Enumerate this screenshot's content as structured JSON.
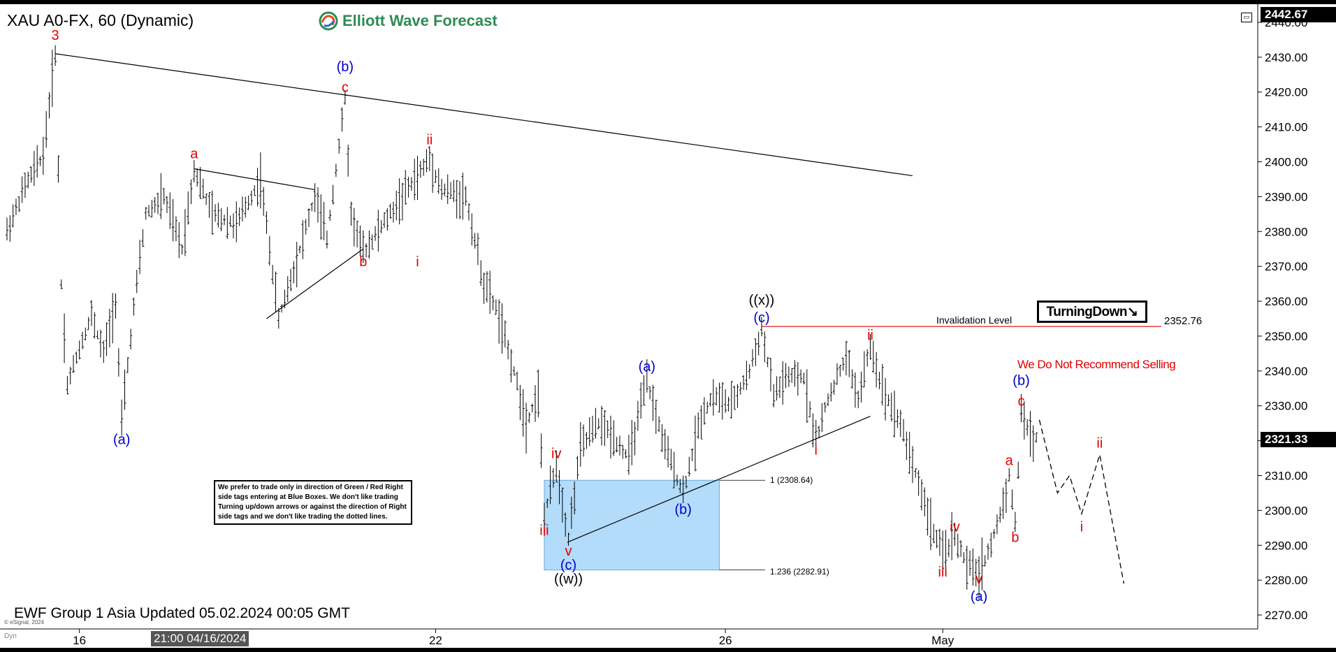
{
  "header": {
    "symbol": "XAU A0-FX, 60 (Dynamic)",
    "logo_text": "Elliott Wave Forecast"
  },
  "footer": {
    "updated": "EWF Group 1 Asia Updated 05.02.2024 00:05 GMT",
    "copyright": "© eSignal, 2024",
    "dyn": "Dyn"
  },
  "disclaimer": "We prefer to trade only in direction of Green / Red Right side tags entering at Blue Boxes. We don't like trading Turning up/down arrows or against the direction of Right side tags and we don't like trading the dotted lines.",
  "turning_label": "TurningDown↘",
  "no_sell": "We Do Not Recommend Selling",
  "invalidation": {
    "label": "Invalidation Level",
    "value": "2352.76"
  },
  "fib": {
    "level1": "1 (2308.64)",
    "level2": "1.236 (2282.91)"
  },
  "price_boxes": {
    "last": "2321.33",
    "top": "2442.67"
  },
  "x_cursor": "21:00 04/16/2024",
  "colors": {
    "up_down_bars": "#000000",
    "blue_box": "#b3dcfb",
    "wave_red": "#e00000",
    "wave_blue": "#0000cc",
    "invalidation_line": "#e00000"
  },
  "chart_data": {
    "type": "ohlc",
    "title": "XAU A0-FX, 60 (Dynamic)",
    "ylim": [
      2266,
      2444
    ],
    "ytick_labels": [
      "2270.00",
      "2280.00",
      "2290.00",
      "2300.00",
      "2310.00",
      "2320.00",
      "2330.00",
      "2340.00",
      "2350.00",
      "2360.00",
      "2370.00",
      "2380.00",
      "2390.00",
      "2400.00",
      "2410.00",
      "2420.00",
      "2430.00",
      "2440.00"
    ],
    "xtick_labels": [
      "16",
      "22",
      "26",
      "May"
    ],
    "price_path": [
      {
        "x": "04/15 00:00",
        "y": 2380
      },
      {
        "x": "04/15 06:00",
        "y": 2393
      },
      {
        "x": "04/15 12:00",
        "y": 2402
      },
      {
        "x": "04/15 16:00",
        "y": 2431
      },
      {
        "x": "04/15 18:00",
        "y": 2365
      },
      {
        "x": "04/15 20:00",
        "y": 2336
      },
      {
        "x": "04/15 23:00",
        "y": 2344
      },
      {
        "x": "04/16 04:00",
        "y": 2356
      },
      {
        "x": "04/16 08:00",
        "y": 2345
      },
      {
        "x": "04/16 12:00",
        "y": 2360
      },
      {
        "x": "04/16 14:00",
        "y": 2325
      },
      {
        "x": "04/16 18:00",
        "y": 2358
      },
      {
        "x": "04/16 22:00",
        "y": 2385
      },
      {
        "x": "04/17 04:00",
        "y": 2390
      },
      {
        "x": "04/17 10:00",
        "y": 2375
      },
      {
        "x": "04/17 14:00",
        "y": 2398
      },
      {
        "x": "04/17 20:00",
        "y": 2385
      },
      {
        "x": "04/18 04:00",
        "y": 2382
      },
      {
        "x": "04/18 12:00",
        "y": 2395
      },
      {
        "x": "04/18 18:00",
        "y": 2355
      },
      {
        "x": "04/19 00:00",
        "y": 2372
      },
      {
        "x": "04/19 06:00",
        "y": 2390
      },
      {
        "x": "04/19 10:00",
        "y": 2378
      },
      {
        "x": "04/19 16:00",
        "y": 2418
      },
      {
        "x": "04/19 18:00",
        "y": 2385
      },
      {
        "x": "04/19 22:00",
        "y": 2374
      },
      {
        "x": "04/21 22:00",
        "y": 2401
      },
      {
        "x": "04/22 02:00",
        "y": 2392
      },
      {
        "x": "04/22 10:00",
        "y": 2390
      },
      {
        "x": "04/22 16:00",
        "y": 2365
      },
      {
        "x": "04/22 20:00",
        "y": 2358
      },
      {
        "x": "04/23 02:00",
        "y": 2340
      },
      {
        "x": "04/23 06:00",
        "y": 2325
      },
      {
        "x": "04/23 10:00",
        "y": 2334
      },
      {
        "x": "04/23 12:00",
        "y": 2298
      },
      {
        "x": "04/23 16:00",
        "y": 2313
      },
      {
        "x": "04/23 20:00",
        "y": 2292
      },
      {
        "x": "04/24 00:00",
        "y": 2318
      },
      {
        "x": "04/24 06:00",
        "y": 2325
      },
      {
        "x": "04/24 10:00",
        "y": 2322
      },
      {
        "x": "04/24 16:00",
        "y": 2315
      },
      {
        "x": "04/24 22:00",
        "y": 2337
      },
      {
        "x": "04/25 04:00",
        "y": 2318
      },
      {
        "x": "04/25 10:00",
        "y": 2305
      },
      {
        "x": "04/25 16:00",
        "y": 2327
      },
      {
        "x": "04/25 20:00",
        "y": 2333
      },
      {
        "x": "04/26 02:00",
        "y": 2330
      },
      {
        "x": "04/26 08:00",
        "y": 2340
      },
      {
        "x": "04/26 12:00",
        "y": 2352
      },
      {
        "x": "04/26 16:00",
        "y": 2333
      },
      {
        "x": "04/26 20:00",
        "y": 2338
      },
      {
        "x": "04/29 02:00",
        "y": 2338
      },
      {
        "x": "04/29 06:00",
        "y": 2320
      },
      {
        "x": "04/29 10:00",
        "y": 2332
      },
      {
        "x": "04/29 16:00",
        "y": 2344
      },
      {
        "x": "04/29 20:00",
        "y": 2332
      },
      {
        "x": "04/30 00:00",
        "y": 2347
      },
      {
        "x": "04/30 04:00",
        "y": 2335
      },
      {
        "x": "04/30 10:00",
        "y": 2325
      },
      {
        "x": "04/30 16:00",
        "y": 2308
      },
      {
        "x": "04/30 20:00",
        "y": 2296
      },
      {
        "x": "05/01 00:00",
        "y": 2287
      },
      {
        "x": "05/01 04:00",
        "y": 2293
      },
      {
        "x": "05/01 08:00",
        "y": 2284
      },
      {
        "x": "05/01 12:00",
        "y": 2282
      },
      {
        "x": "05/01 16:00",
        "y": 2290
      },
      {
        "x": "05/01 20:00",
        "y": 2302
      },
      {
        "x": "05/01 22:00",
        "y": 2310
      },
      {
        "x": "05/02 00:00",
        "y": 2296
      },
      {
        "x": "05/02 02:00",
        "y": 2328
      },
      {
        "x": "05/02 06:00",
        "y": 2320
      },
      {
        "x": "05/02 08:00",
        "y": 2322
      }
    ],
    "projection": [
      {
        "x": "05/02 08:00",
        "y": 2326
      },
      {
        "x": "05/02 14:00",
        "y": 2305
      },
      {
        "x": "05/02 18:00",
        "y": 2310
      },
      {
        "x": "05/02 22:00",
        "y": 2299
      },
      {
        "x": "05/03 04:00",
        "y": 2316
      },
      {
        "x": "05/03 12:00",
        "y": 2279
      }
    ],
    "trend_lines": [
      {
        "from": {
          "x": "04/15 16:00",
          "y": 2431
        },
        "to": {
          "x": "04/30 14:00",
          "y": 2396
        }
      },
      {
        "from": {
          "x": "04/17 14:00",
          "y": 2398
        },
        "to": {
          "x": "04/19 06:00",
          "y": 2392
        }
      },
      {
        "from": {
          "x": "04/18 14:00",
          "y": 2355
        },
        "to": {
          "x": "04/19 22:00",
          "y": 2375
        }
      },
      {
        "from": {
          "x": "04/23 20:00",
          "y": 2291
        },
        "to": {
          "x": "04/30 00:00",
          "y": 2327
        }
      }
    ],
    "blue_box": {
      "x_from": "04/23 12:00",
      "x_to": "04/25 22:00",
      "y_from": 2282.91,
      "y_to": 2308.64
    },
    "invalidation_level": 2352.76,
    "labels": [
      {
        "text": "3",
        "x": "04/15 16:00",
        "y": 2435,
        "color": "red"
      },
      {
        "text": "(a)",
        "x": "04/16 14:00",
        "y": 2319,
        "color": "blue"
      },
      {
        "text": "a",
        "x": "04/17 14:00",
        "y": 2401,
        "color": "red"
      },
      {
        "text": "b",
        "x": "04/19 22:00",
        "y": 2370,
        "color": "red"
      },
      {
        "text": "(b)",
        "x": "04/19 16:00",
        "y": 2426,
        "color": "blue"
      },
      {
        "text": "c",
        "x": "04/19 16:00",
        "y": 2420,
        "color": "red"
      },
      {
        "text": "ii",
        "x": "04/21 22:00",
        "y": 2405,
        "color": "red"
      },
      {
        "text": "i",
        "x": "04/21 18:00",
        "y": 2370,
        "color": "red"
      },
      {
        "text": "iv",
        "x": "04/23 16:00",
        "y": 2315,
        "color": "red"
      },
      {
        "text": "iii",
        "x": "04/23 12:00",
        "y": 2293,
        "color": "red"
      },
      {
        "text": "v",
        "x": "04/23 20:00",
        "y": 2287,
        "color": "red"
      },
      {
        "text": "(c)",
        "x": "04/23 20:00",
        "y": 2283,
        "color": "blue"
      },
      {
        "text": "((w))",
        "x": "04/23 20:00",
        "y": 2279,
        "color": "black"
      },
      {
        "text": "(a)",
        "x": "04/24 22:00",
        "y": 2340,
        "color": "blue"
      },
      {
        "text": "(b)",
        "x": "04/25 10:00",
        "y": 2299,
        "color": "blue"
      },
      {
        "text": "((x))",
        "x": "04/26 12:00",
        "y": 2359,
        "color": "black"
      },
      {
        "text": "(c)",
        "x": "04/26 12:00",
        "y": 2354,
        "color": "blue"
      },
      {
        "text": "i",
        "x": "04/29 06:00",
        "y": 2316,
        "color": "red"
      },
      {
        "text": "ii",
        "x": "04/30 00:00",
        "y": 2349,
        "color": "red"
      },
      {
        "text": "iii",
        "x": "05/01 00:00",
        "y": 2281,
        "color": "red"
      },
      {
        "text": "iv",
        "x": "05/01 04:00",
        "y": 2294,
        "color": "red"
      },
      {
        "text": "v",
        "x": "05/01 12:00",
        "y": 2279,
        "color": "red"
      },
      {
        "text": "(a)",
        "x": "05/01 12:00",
        "y": 2274,
        "color": "blue"
      },
      {
        "text": "a",
        "x": "05/01 22:00",
        "y": 2313,
        "color": "red"
      },
      {
        "text": "b",
        "x": "05/02 00:00",
        "y": 2291,
        "color": "red"
      },
      {
        "text": "(b)",
        "x": "05/02 02:00",
        "y": 2336,
        "color": "blue"
      },
      {
        "text": "c",
        "x": "05/02 02:00",
        "y": 2330,
        "color": "red"
      },
      {
        "text": "ii",
        "x": "05/03 04:00",
        "y": 2318,
        "color": "red"
      },
      {
        "text": "i",
        "x": "05/02 22:00",
        "y": 2294,
        "color": "red"
      }
    ]
  }
}
